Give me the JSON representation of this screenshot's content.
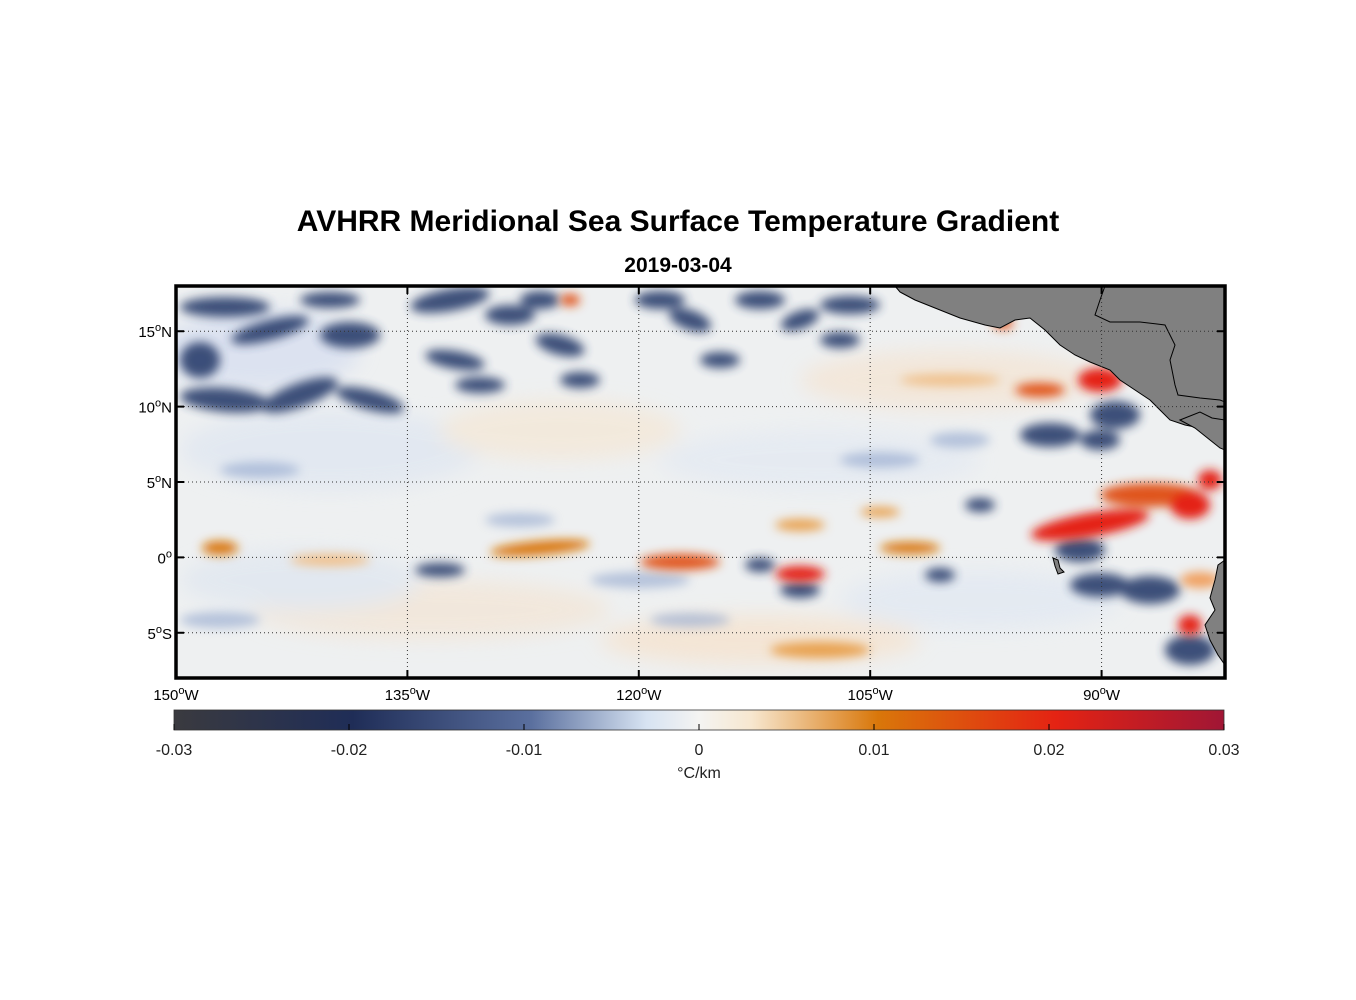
{
  "figure": {
    "title": "AVHRR Meridional Sea Surface Temperature Gradient",
    "subtitle": "2019-03-04"
  },
  "chart_data": {
    "type": "heatmap",
    "variable": "meridional SST gradient",
    "units": "°C/km",
    "x_axis": {
      "range": [
        -150,
        -82
      ],
      "ticks": [
        {
          "value": -150,
          "label": "150",
          "suffix": "W"
        },
        {
          "value": -135,
          "label": "135",
          "suffix": "W"
        },
        {
          "value": -120,
          "label": "120",
          "suffix": "W"
        },
        {
          "value": -105,
          "label": "105",
          "suffix": "W"
        },
        {
          "value": -90,
          "label": "90",
          "suffix": "W"
        }
      ]
    },
    "y_axis": {
      "range": [
        -8,
        18
      ],
      "ticks": [
        {
          "value": 15,
          "label": "15",
          "suffix": "N"
        },
        {
          "value": 10,
          "label": "10",
          "suffix": "N"
        },
        {
          "value": 5,
          "label": "5",
          "suffix": "N"
        },
        {
          "value": 0,
          "label": "0",
          "suffix": ""
        },
        {
          "value": -5,
          "label": "5",
          "suffix": "S"
        }
      ]
    },
    "grid": true,
    "colorbar": {
      "range": [
        -0.03,
        0.03
      ],
      "ticks": [
        "-0.03",
        "-0.02",
        "-0.01",
        "0",
        "0.01",
        "0.02",
        "0.03"
      ],
      "label": "°C/km",
      "colors": [
        "#3a3a3f",
        "#1f2d57",
        "#5a6f9e",
        "#d7e3f2",
        "#f7f2e6",
        "#f3d3b0",
        "#d9770a",
        "#e42313",
        "#a01635"
      ]
    },
    "land_color": "#808080"
  }
}
